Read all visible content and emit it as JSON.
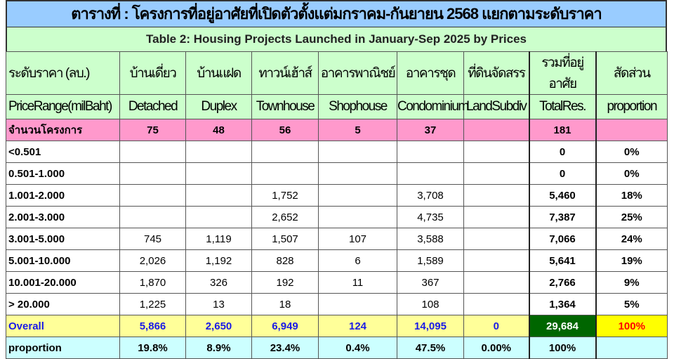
{
  "title": "ตารางที่ : โครงการที่อยู่อาศัยที่เปิดตัวตั้งแต่มกราคม-กันยายน 2568 แยกตามระดับราคา",
  "subtitle": "Table 2: Housing Projects Launched in January-Sep 2025 by Prices",
  "headers_th": [
    "ระดับราคา (ลบ.)",
    "บ้านเดี่ยว",
    "บ้านแฝด",
    "ทาวน์เฮ้าส์",
    "อาคารพาณิชย์",
    "อาคารชุด",
    "ที่ดินจัดสรร",
    "รวมที่อยู่อาศัย",
    "สัดส่วน"
  ],
  "headers_en": [
    "PriceRange(milBaht)",
    "Detached",
    "Duplex",
    "Townhouse",
    "Shophouse",
    "Condominium",
    "LandSubdiv",
    "TotalRes.",
    "proportion"
  ],
  "count_row": [
    "จำนวนโครงการ",
    "75",
    "48",
    "56",
    "5",
    "37",
    "",
    "181",
    ""
  ],
  "rows": [
    [
      "<0.501",
      "",
      "",
      "",
      "",
      "",
      "",
      "0",
      "0%"
    ],
    [
      "0.501-1.000",
      "",
      "",
      "",
      "",
      "",
      "",
      "0",
      "0%"
    ],
    [
      "1.001-2.000",
      "",
      "",
      "1,752",
      "",
      "3,708",
      "",
      "5,460",
      "18%"
    ],
    [
      "2.001-3.000",
      "",
      "",
      "2,652",
      "",
      "4,735",
      "",
      "7,387",
      "25%"
    ],
    [
      "3.001-5.000",
      "745",
      "1,119",
      "1,507",
      "107",
      "3,588",
      "",
      "7,066",
      "24%"
    ],
    [
      "5.001-10.000",
      "2,026",
      "1,192",
      "828",
      "6",
      "1,589",
      "",
      "5,641",
      "19%"
    ],
    [
      "10.001-20.000",
      "1,870",
      "326",
      "192",
      "11",
      "367",
      "",
      "2,766",
      "9%"
    ],
    [
      "> 20.000",
      "1,225",
      "13",
      "18",
      "",
      "108",
      "",
      "1,364",
      "5%"
    ]
  ],
  "overall_row": [
    "Overall",
    "5,866",
    "2,650",
    "6,949",
    "124",
    "14,095",
    "0",
    "29,684",
    "100%"
  ],
  "proportion_row": [
    "proportion",
    "19.8%",
    "8.9%",
    "23.4%",
    "0.4%",
    "47.5%",
    "0.00%",
    "100%",
    ""
  ],
  "colors": {
    "title_bg": "#99ccff",
    "header_bg": "#ccffcc",
    "count_bg": "#ff99cc",
    "overall_bg": "#ffff99",
    "overall_text": "#1a1ae6",
    "proportion_bg": "#ccffff",
    "total_highlight": "#006600",
    "percent_highlight": "#ffff00"
  }
}
